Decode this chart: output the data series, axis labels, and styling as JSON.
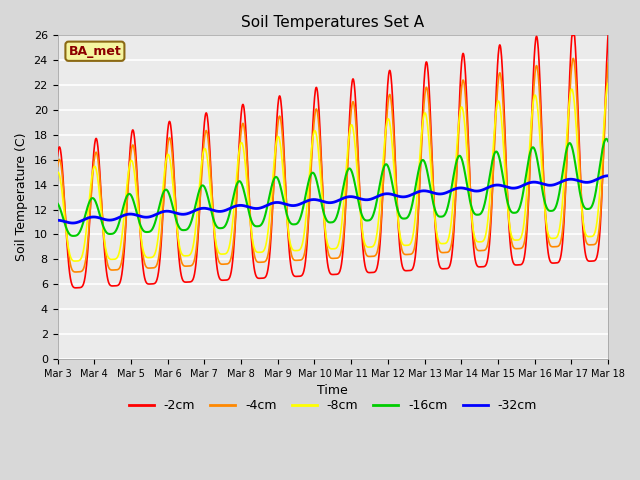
{
  "title": "Soil Temperatures Set A",
  "xlabel": "Time",
  "ylabel": "Soil Temperature (C)",
  "xlim": [
    0,
    15
  ],
  "ylim": [
    0,
    26
  ],
  "yticks": [
    0,
    2,
    4,
    6,
    8,
    10,
    12,
    14,
    16,
    18,
    20,
    22,
    24,
    26
  ],
  "xtick_labels": [
    "Mar 3",
    "Mar 4",
    "Mar 5",
    "Mar 6",
    "Mar 7",
    "Mar 8",
    "Mar 9",
    "Mar 10",
    "Mar 11",
    "Mar 12",
    "Mar 13",
    "Mar 14",
    "Mar 15",
    "Mar 16",
    "Mar 17",
    "Mar 18"
  ],
  "annotation_text": "BA_met",
  "annotation_box_color": "#f5f5a0",
  "annotation_text_color": "#8b0000",
  "series_colors": [
    "#ff0000",
    "#ff8800",
    "#ffff00",
    "#00cc00",
    "#0000ff"
  ],
  "series_labels": [
    "-2cm",
    "-4cm",
    "-8cm",
    "-16cm",
    "-32cm"
  ],
  "series_linewidths": [
    1.2,
    1.2,
    1.2,
    1.5,
    2.0
  ],
  "fig_bg_color": "#d8d8d8",
  "plot_bg_color": "#ebebeb",
  "grid_color": "#ffffff",
  "n_points": 1500,
  "days": 15,
  "base_trend_start": 11.0,
  "base_trend_end": 14.5
}
